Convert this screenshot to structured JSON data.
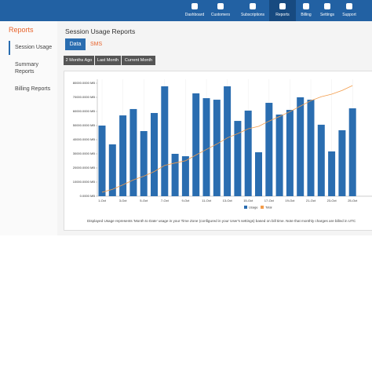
{
  "nav": [
    "Dashboard",
    "Customers",
    "Subscriptions",
    "Reports",
    "Billing",
    "Settings",
    "Support"
  ],
  "sidebar": {
    "title": "Reports",
    "items": [
      "Session Usage",
      "Summary Reports",
      "Billing Reports"
    ]
  },
  "page_title": "Session Usage Reports",
  "tabs": [
    "Data",
    "SMS"
  ],
  "range_buttons": [
    "2 Months Ago",
    "Last Month",
    "Current Month"
  ],
  "chart_data": {
    "type": "bar",
    "categories": [
      "1-Oct",
      null,
      "3-Oct",
      null,
      "5-Oct",
      null,
      "7-Oct",
      null,
      "9-Oct",
      null,
      "11-Oct",
      null,
      "13-Oct",
      null,
      "15-Oct",
      null,
      "17-Oct",
      null,
      "19-Oct",
      null,
      "21-Oct",
      null,
      "23-Oct",
      null,
      "25-Oct"
    ],
    "series": [
      {
        "name": "Usage",
        "color": "#2a6db0",
        "values": [
          50000,
          36700,
          57200,
          61700,
          46100,
          58900,
          77800,
          30000,
          28300,
          72800,
          69400,
          68300,
          77800,
          53300,
          60600,
          31100,
          66100,
          57800,
          61100,
          70000,
          68300,
          50600,
          31700,
          46700,
          62200
        ]
      },
      {
        "name": "Total",
        "color": "#f39c4a",
        "type": "line",
        "axis": "y2",
        "values": [
          50000,
          86700,
          143900,
          205600,
          251700,
          310600,
          388400,
          418400,
          446700,
          519500,
          588900,
          657200,
          735000,
          788300,
          848900,
          880000,
          946100,
          1003900,
          1065000,
          1135000,
          1203300,
          1253900,
          1285600,
          1332300,
          1394500
        ]
      }
    ],
    "ylim": [
      0,
      80000
    ],
    "yticks": [
      {
        "value": 0,
        "label": "0.0000 MB"
      },
      {
        "value": 10000,
        "label": "10000.0000 MB"
      },
      {
        "value": 20000,
        "label": "20000.0000 MB"
      },
      {
        "value": 30000,
        "label": "30000.0000 MB"
      },
      {
        "value": 40000,
        "label": "40000.0000 MB"
      },
      {
        "value": 50000,
        "label": "50000.0000 MB"
      },
      {
        "value": 60000,
        "label": "60000.0000 MB"
      },
      {
        "value": 70000,
        "label": "70000.0000 MB"
      },
      {
        "value": 80000,
        "label": "80000.0000 MB"
      }
    ],
    "y2lim": [
      0,
      1424000
    ],
    "note": "Displayed Usage represents 'Month to Date' usage in your Time Zone (configured in your User's settings) based on bill time. Note that monthly charges are billed in UTC"
  }
}
